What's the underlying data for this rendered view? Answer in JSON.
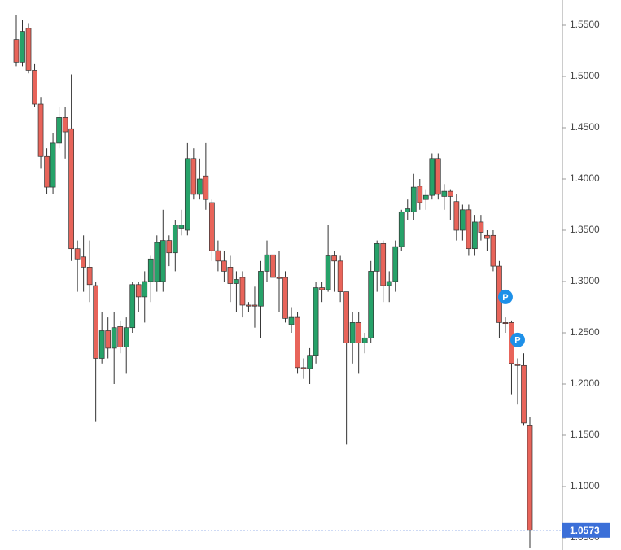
{
  "chart_data": {
    "type": "candlestick",
    "ylim": [
      1.0381,
      1.5746
    ],
    "yticks": [
      {
        "value": 1.05,
        "label": "1.0500"
      },
      {
        "value": 1.1,
        "label": "1.1000"
      },
      {
        "value": 1.15,
        "label": "1.1500"
      },
      {
        "value": 1.2,
        "label": "1.2000"
      },
      {
        "value": 1.25,
        "label": "1.2500"
      },
      {
        "value": 1.3,
        "label": "1.3000"
      },
      {
        "value": 1.35,
        "label": "1.3500"
      },
      {
        "value": 1.4,
        "label": "1.4000"
      },
      {
        "value": 1.45,
        "label": "1.4500"
      },
      {
        "value": 1.5,
        "label": "1.5000"
      },
      {
        "value": 1.55,
        "label": "1.5500"
      }
    ],
    "grid": false,
    "up_color": "#26a269",
    "down_color": "#e8645a",
    "open": [
      1.536,
      1.514,
      1.547,
      1.506,
      1.473,
      1.422,
      1.392,
      1.435,
      1.46,
      1.449,
      1.332,
      1.324,
      1.314,
      1.296,
      1.225,
      1.252,
      1.235,
      1.256,
      1.236,
      1.255,
      1.297,
      1.285,
      1.3,
      1.3,
      1.3,
      1.34,
      1.328,
      1.352,
      1.35,
      1.42,
      1.385,
      1.403,
      1.377,
      1.33,
      1.32,
      1.314,
      1.298,
      1.304,
      1.277,
      1.277,
      1.276,
      1.31,
      1.326,
      1.304,
      1.304,
      1.258,
      1.265,
      1.216,
      1.215,
      1.228,
      1.294,
      1.292,
      1.325,
      1.32,
      1.29,
      1.24,
      1.26,
      1.24,
      1.245,
      1.31,
      1.337,
      1.296,
      1.3,
      1.334,
      1.368,
      1.368,
      1.393,
      1.38,
      1.384,
      1.42,
      1.383,
      1.388,
      1.378,
      1.35,
      1.37,
      1.332,
      1.358,
      1.345,
      1.345,
      1.315,
      1.26,
      1.26,
      1.219,
      1.218,
      1.16
    ],
    "high": [
      1.56,
      1.555,
      1.552,
      1.512,
      1.48,
      1.43,
      1.445,
      1.47,
      1.47,
      1.502,
      1.34,
      1.345,
      1.34,
      1.3,
      1.27,
      1.265,
      1.27,
      1.262,
      1.265,
      1.3,
      1.3,
      1.31,
      1.325,
      1.345,
      1.37,
      1.345,
      1.36,
      1.37,
      1.435,
      1.43,
      1.42,
      1.435,
      1.38,
      1.34,
      1.33,
      1.325,
      1.31,
      1.31,
      1.28,
      1.295,
      1.32,
      1.34,
      1.335,
      1.33,
      1.31,
      1.275,
      1.27,
      1.225,
      1.235,
      1.3,
      1.3,
      1.355,
      1.33,
      1.325,
      1.29,
      1.27,
      1.27,
      1.25,
      1.32,
      1.34,
      1.34,
      1.31,
      1.34,
      1.37,
      1.38,
      1.405,
      1.4,
      1.39,
      1.425,
      1.425,
      1.395,
      1.39,
      1.385,
      1.375,
      1.375,
      1.365,
      1.365,
      1.35,
      1.35,
      1.32,
      1.265,
      1.262,
      1.225,
      1.23,
      1.168
    ],
    "low": [
      1.51,
      1.51,
      1.503,
      1.47,
      1.41,
      1.385,
      1.385,
      1.43,
      1.42,
      1.32,
      1.29,
      1.29,
      1.28,
      1.163,
      1.22,
      1.225,
      1.2,
      1.23,
      1.21,
      1.25,
      1.27,
      1.26,
      1.28,
      1.29,
      1.29,
      1.315,
      1.31,
      1.345,
      1.345,
      1.38,
      1.38,
      1.37,
      1.32,
      1.31,
      1.3,
      1.28,
      1.27,
      1.265,
      1.27,
      1.255,
      1.245,
      1.3,
      1.29,
      1.27,
      1.26,
      1.25,
      1.21,
      1.205,
      1.2,
      1.22,
      1.28,
      1.29,
      1.29,
      1.28,
      1.141,
      1.22,
      1.21,
      1.23,
      1.24,
      1.29,
      1.28,
      1.28,
      1.29,
      1.33,
      1.36,
      1.36,
      1.37,
      1.37,
      1.38,
      1.38,
      1.37,
      1.36,
      1.34,
      1.34,
      1.325,
      1.325,
      1.34,
      1.33,
      1.31,
      1.245,
      1.25,
      1.19,
      1.18,
      1.16,
      1.04
    ],
    "close": [
      1.514,
      1.544,
      1.506,
      1.473,
      1.422,
      1.392,
      1.435,
      1.46,
      1.446,
      1.332,
      1.322,
      1.314,
      1.297,
      1.225,
      1.252,
      1.235,
      1.255,
      1.236,
      1.255,
      1.297,
      1.285,
      1.3,
      1.322,
      1.338,
      1.34,
      1.328,
      1.355,
      1.355,
      1.42,
      1.385,
      1.4,
      1.38,
      1.33,
      1.32,
      1.31,
      1.298,
      1.302,
      1.277,
      1.276,
      1.276,
      1.31,
      1.326,
      1.304,
      1.303,
      1.264,
      1.265,
      1.216,
      1.215,
      1.228,
      1.294,
      1.292,
      1.325,
      1.32,
      1.29,
      1.24,
      1.26,
      1.24,
      1.245,
      1.31,
      1.337,
      1.296,
      1.3,
      1.334,
      1.368,
      1.371,
      1.392,
      1.377,
      1.384,
      1.42,
      1.385,
      1.388,
      1.383,
      1.35,
      1.37,
      1.332,
      1.358,
      1.348,
      1.342,
      1.315,
      1.26,
      1.259,
      1.22,
      1.218,
      1.162,
      1.0573
    ],
    "annotations": [
      {
        "label": "P",
        "index": 80,
        "value": 1.285
      },
      {
        "label": "P",
        "index": 82,
        "value": 1.243
      }
    ],
    "last_price": {
      "value": 1.0573,
      "label": "1.0573",
      "color": "#3b6fd8"
    }
  }
}
